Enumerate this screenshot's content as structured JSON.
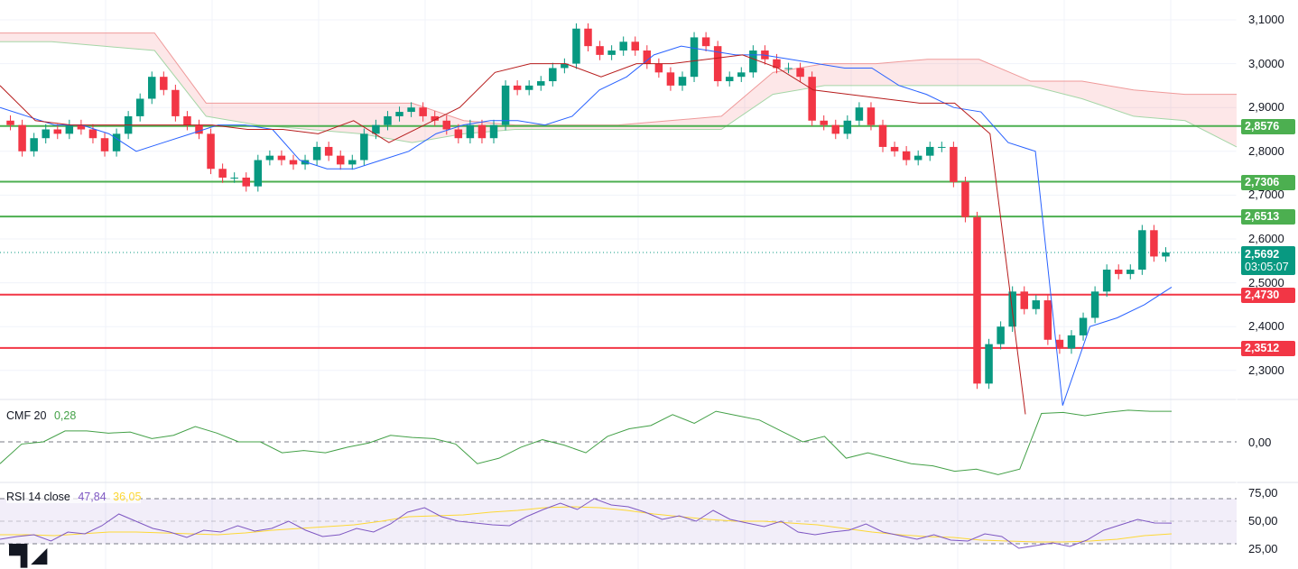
{
  "chart_data": {
    "type": "candlestick",
    "price_axis": {
      "ticks": [
        "3,1000",
        "3,0000",
        "2,9000",
        "2,8000",
        "2,7000",
        "2,6000",
        "2,5000",
        "2,4000",
        "2,3000"
      ],
      "tick_values": [
        3.1,
        3.0,
        2.9,
        2.8,
        2.7,
        2.6,
        2.5,
        2.4,
        2.3
      ],
      "ylim": [
        2.22,
        3.12
      ]
    },
    "closes": [
      2.86,
      2.8,
      2.83,
      2.85,
      2.84,
      2.86,
      2.85,
      2.83,
      2.8,
      2.84,
      2.88,
      2.92,
      2.97,
      2.94,
      2.88,
      2.86,
      2.84,
      2.76,
      2.74,
      2.74,
      2.72,
      2.78,
      2.79,
      2.78,
      2.77,
      2.78,
      2.81,
      2.79,
      2.77,
      2.78,
      2.84,
      2.86,
      2.88,
      2.89,
      2.9,
      2.88,
      2.87,
      2.85,
      2.83,
      2.86,
      2.83,
      2.86,
      2.95,
      2.94,
      2.95,
      2.96,
      2.99,
      3.0,
      3.08,
      3.04,
      3.02,
      3.03,
      3.05,
      3.03,
      3.0,
      2.98,
      2.95,
      2.97,
      3.06,
      3.04,
      2.96,
      2.97,
      2.98,
      3.03,
      3.01,
      2.99,
      2.99,
      2.97,
      2.87,
      2.86,
      2.84,
      2.87,
      2.9,
      2.86,
      2.81,
      2.8,
      2.78,
      2.79,
      2.81,
      2.81,
      2.73,
      2.65,
      2.27,
      2.36,
      2.4,
      2.48,
      2.44,
      2.46,
      2.37,
      2.35,
      2.38,
      2.42,
      2.48,
      2.53,
      2.52,
      2.53,
      2.62,
      2.56,
      2.5692
    ],
    "tenkan": [
      2.9,
      2.88,
      2.86,
      2.86,
      2.84,
      2.8,
      2.82,
      2.84,
      2.86,
      2.86,
      2.85,
      2.78,
      2.76,
      2.76,
      2.78,
      2.8,
      2.84,
      2.86,
      2.87,
      2.87,
      2.86,
      2.88,
      2.94,
      2.97,
      3.02,
      3.04,
      3.03,
      3.02,
      3.02,
      3.01,
      3.0,
      2.99,
      2.99,
      2.95,
      2.93,
      2.9,
      2.89,
      2.82,
      2.8,
      2.22,
      2.4,
      2.42,
      2.45,
      2.49
    ],
    "kijun": [
      2.95,
      2.87,
      2.86,
      2.86,
      2.86,
      2.86,
      2.86,
      2.85,
      2.85,
      2.84,
      2.87,
      2.82,
      2.86,
      2.9,
      2.98,
      3.0,
      3.0,
      2.97,
      3.0,
      3.0,
      3.01,
      3.02,
      2.99,
      2.94,
      2.93,
      2.92,
      2.91,
      2.91,
      2.84,
      2.2
    ],
    "cloud_top": [
      3.07,
      3.07,
      3.07,
      3.07,
      2.91,
      2.91,
      2.91,
      2.91,
      2.91,
      2.87,
      2.86,
      2.86,
      2.86,
      2.87,
      2.88,
      2.98,
      3.0,
      3.0,
      3.01,
      3.01,
      2.96,
      2.96,
      2.94,
      2.93,
      2.93
    ],
    "cloud_bottom": [
      3.05,
      3.05,
      3.04,
      3.03,
      2.88,
      2.86,
      2.85,
      2.84,
      2.82,
      2.84,
      2.85,
      2.85,
      2.85,
      2.85,
      2.85,
      2.93,
      2.95,
      2.95,
      2.95,
      2.95,
      2.95,
      2.92,
      2.88,
      2.87,
      2.81
    ],
    "levels": [
      {
        "value": 2.8576,
        "label": "2,8576",
        "color": "#4caf50"
      },
      {
        "value": 2.7306,
        "label": "2,7306",
        "color": "#4caf50"
      },
      {
        "value": 2.6513,
        "label": "2,6513",
        "color": "#4caf50"
      },
      {
        "value": 2.473,
        "label": "2,4730",
        "color": "#f23645"
      },
      {
        "value": 2.3512,
        "label": "2,3512",
        "color": "#f23645"
      }
    ],
    "current": {
      "value": 2.5692,
      "label": "2,5692",
      "countdown": "03:05:07",
      "color": "#089981"
    },
    "cmf": {
      "name": "CMF 20",
      "value": "0,28",
      "axis": [
        "0,00"
      ],
      "values": [
        -0.2,
        -0.02,
        0.0,
        0.1,
        0.1,
        0.08,
        0.09,
        0.03,
        0.06,
        0.14,
        0.08,
        0.0,
        0.0,
        -0.1,
        -0.08,
        -0.1,
        -0.05,
        -0.01,
        0.06,
        0.04,
        0.03,
        -0.02,
        -0.2,
        -0.15,
        -0.05,
        0.02,
        -0.03,
        -0.1,
        0.05,
        0.12,
        0.15,
        0.25,
        0.17,
        0.28,
        0.24,
        0.2,
        0.1,
        0.0,
        0.05,
        -0.15,
        -0.1,
        -0.15,
        -0.2,
        -0.22,
        -0.27,
        -0.25,
        -0.3,
        -0.25,
        0.26,
        0.27,
        0.24,
        0.27,
        0.29,
        0.28,
        0.28
      ]
    },
    "rsi": {
      "name": "RSI 14 close",
      "value": "47,84",
      "ma_value": "36,05",
      "axis": [
        "75,00",
        "50,00",
        "25,00"
      ],
      "values": [
        30,
        33,
        35,
        28,
        38,
        36,
        45,
        58,
        50,
        42,
        38,
        32,
        40,
        38,
        45,
        39,
        42,
        50,
        40,
        33,
        35,
        42,
        38,
        47,
        60,
        65,
        55,
        50,
        48,
        46,
        45,
        55,
        63,
        70,
        63,
        75,
        68,
        66,
        60,
        52,
        56,
        50,
        62,
        52,
        48,
        44,
        50,
        38,
        35,
        38,
        40,
        47,
        38,
        34,
        30,
        35,
        29,
        28,
        36,
        33,
        20,
        23,
        26,
        22,
        29,
        40,
        46,
        52,
        48,
        47.84
      ],
      "ma": [
        35,
        35,
        34,
        36,
        38,
        38,
        37,
        36,
        35,
        37,
        40,
        42,
        44,
        46,
        50,
        55,
        56,
        57,
        60,
        62,
        65,
        66,
        65,
        62,
        58,
        55,
        52,
        50,
        50,
        48,
        46,
        42,
        38,
        35,
        33,
        32,
        29,
        28,
        27,
        27,
        28,
        30,
        34,
        36.05
      ]
    }
  },
  "branding": {
    "logo_text": "TV"
  }
}
